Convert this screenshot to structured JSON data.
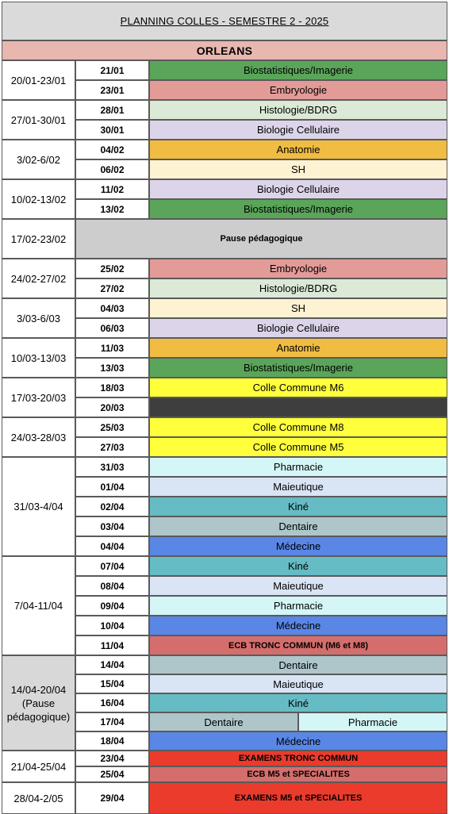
{
  "header": {
    "title": "PLANNING COLLES - SEMESTRE 2 - 2025",
    "city": "ORLEANS"
  },
  "colors": {
    "header_bg": "#dadada",
    "city_bg": "#e7b7b0",
    "pause_bg": "#cdcdcd",
    "week_bg_highlight": "#d8d8d8"
  },
  "weeks": [
    {
      "label": "20/01-23/01",
      "rows": [
        {
          "date": "21/01",
          "subjects": [
            {
              "text": "Biostatistiques/Imagerie",
              "color": "#5aa55a"
            }
          ]
        },
        {
          "date": "23/01",
          "subjects": [
            {
              "text": "Embryologie",
              "color": "#e39b98"
            }
          ]
        }
      ]
    },
    {
      "label": "27/01-30/01",
      "rows": [
        {
          "date": "28/01",
          "subjects": [
            {
              "text": "Histologie/BDRG",
              "color": "#dbe9d6"
            }
          ]
        },
        {
          "date": "30/01",
          "subjects": [
            {
              "text": "Biologie Cellulaire",
              "color": "#dcd5ea"
            }
          ]
        }
      ]
    },
    {
      "label": "3/02-6/02",
      "rows": [
        {
          "date": "04/02",
          "subjects": [
            {
              "text": "Anatomie",
              "color": "#f0bc42"
            }
          ]
        },
        {
          "date": "06/02",
          "subjects": [
            {
              "text": "SH",
              "color": "#fdf3d2"
            }
          ]
        }
      ]
    },
    {
      "label": "10/02-13/02",
      "rows": [
        {
          "date": "11/02",
          "subjects": [
            {
              "text": "Biologie Cellulaire",
              "color": "#dcd5ea"
            }
          ]
        },
        {
          "date": "13/02",
          "subjects": [
            {
              "text": "Biostatistiques/Imagerie",
              "color": "#5aa55a"
            }
          ]
        }
      ]
    },
    {
      "label": "17/02-23/02",
      "pause": "Pause pédagogique",
      "rows": []
    },
    {
      "label": "24/02-27/02",
      "rows": [
        {
          "date": "25/02",
          "subjects": [
            {
              "text": "Embryologie",
              "color": "#e39b98"
            }
          ]
        },
        {
          "date": "27/02",
          "subjects": [
            {
              "text": "Histologie/BDRG",
              "color": "#dbe9d6"
            }
          ]
        }
      ]
    },
    {
      "label": "3/03-6/03",
      "rows": [
        {
          "date": "04/03",
          "subjects": [
            {
              "text": "SH",
              "color": "#fdf3d2"
            }
          ]
        },
        {
          "date": "06/03",
          "subjects": [
            {
              "text": "Biologie Cellulaire",
              "color": "#dcd5ea"
            }
          ]
        }
      ]
    },
    {
      "label": "10/03-13/03",
      "rows": [
        {
          "date": "11/03",
          "subjects": [
            {
              "text": "Anatomie",
              "color": "#f0bc42"
            }
          ]
        },
        {
          "date": "13/03",
          "subjects": [
            {
              "text": "Biostatistiques/Imagerie",
              "color": "#5aa55a"
            }
          ]
        }
      ]
    },
    {
      "label": "17/03-20/03",
      "rows": [
        {
          "date": "18/03",
          "subjects": [
            {
              "text": "Colle Commune M6",
              "color": "#ffff3b"
            }
          ]
        },
        {
          "date": "20/03",
          "subjects": [
            {
              "text": "",
              "color": "#3e3e3e"
            }
          ]
        }
      ]
    },
    {
      "label": "24/03-28/03",
      "rows": [
        {
          "date": "25/03",
          "subjects": [
            {
              "text": "Colle Commune M8",
              "color": "#ffff3b"
            }
          ]
        },
        {
          "date": "27/03",
          "subjects": [
            {
              "text": "Colle Commune M5",
              "color": "#ffff3b"
            }
          ]
        }
      ]
    },
    {
      "label": "31/03-4/04",
      "rows": [
        {
          "date": "31/03",
          "subjects": [
            {
              "text": "Pharmacie",
              "color": "#d4f6f6"
            }
          ]
        },
        {
          "date": "01/04",
          "subjects": [
            {
              "text": "Maieutique",
              "color": "#d9e4f4"
            }
          ]
        },
        {
          "date": "02/04",
          "subjects": [
            {
              "text": "Kiné",
              "color": "#66bcc4"
            }
          ]
        },
        {
          "date": "03/04",
          "subjects": [
            {
              "text": "Dentaire",
              "color": "#aec6ca"
            }
          ]
        },
        {
          "date": "04/04",
          "subjects": [
            {
              "text": "Médecine",
              "color": "#5a86e6"
            }
          ]
        }
      ]
    },
    {
      "label": "7/04-11/04",
      "rows": [
        {
          "date": "07/04",
          "subjects": [
            {
              "text": "Kiné",
              "color": "#66bcc4"
            }
          ]
        },
        {
          "date": "08/04",
          "subjects": [
            {
              "text": "Maieutique",
              "color": "#d9e4f4"
            }
          ]
        },
        {
          "date": "09/04",
          "subjects": [
            {
              "text": "Pharmacie",
              "color": "#d4f6f6"
            }
          ]
        },
        {
          "date": "10/04",
          "subjects": [
            {
              "text": "Médecine",
              "color": "#5a86e6"
            }
          ]
        },
        {
          "date": "11/04",
          "subjects": [
            {
              "text": "ECB TRONC COMMUN (M6 et M8)",
              "color": "#d46e6c",
              "bold": true
            }
          ]
        }
      ]
    },
    {
      "label": "14/04-20/04 (Pause pédagogique)",
      "highlight": true,
      "rows": [
        {
          "date": "14/04",
          "subjects": [
            {
              "text": "Dentaire",
              "color": "#aec6ca"
            }
          ]
        },
        {
          "date": "15/04",
          "subjects": [
            {
              "text": "Maieutique",
              "color": "#d9e4f4"
            }
          ]
        },
        {
          "date": "16/04",
          "subjects": [
            {
              "text": "Kiné",
              "color": "#66bcc4"
            }
          ]
        },
        {
          "date": "17/04",
          "subjects": [
            {
              "text": "Dentaire",
              "color": "#aec6ca"
            },
            {
              "text": "Pharmacie",
              "color": "#d4f6f6"
            }
          ]
        },
        {
          "date": "18/04",
          "subjects": [
            {
              "text": "Médecine",
              "color": "#5a86e6"
            }
          ]
        }
      ]
    },
    {
      "label": "21/04-25/04",
      "rows": [
        {
          "date": "23/04",
          "subjects": [
            {
              "text": "EXAMENS TRONC COMMUN",
              "color": "#ea3b2d",
              "bold": true
            }
          ]
        },
        {
          "date": "25/04",
          "subjects": [
            {
              "text": "ECB M5 et SPECIALITES",
              "color": "#d46e6c",
              "bold": true
            }
          ]
        }
      ]
    },
    {
      "label": "28/04-2/05",
      "rows": [
        {
          "date": "29/04",
          "subjects": [
            {
              "text": "EXAMENS M5 et SPECIALITES",
              "color": "#ea3b2d",
              "bold": true
            }
          ]
        }
      ]
    }
  ]
}
